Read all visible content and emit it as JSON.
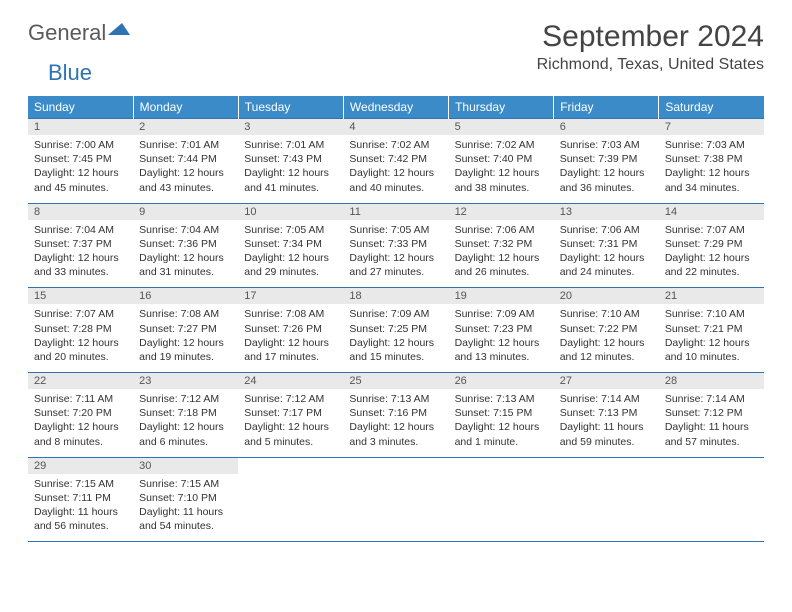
{
  "brand": {
    "general": "General",
    "blue": "Blue"
  },
  "title": "September 2024",
  "location": "Richmond, Texas, United States",
  "colors": {
    "header_bg": "#3b8bc9",
    "accent": "#2e74b5",
    "daynum_bg": "#e9e9e9"
  },
  "dow": [
    "Sunday",
    "Monday",
    "Tuesday",
    "Wednesday",
    "Thursday",
    "Friday",
    "Saturday"
  ],
  "weeks": [
    [
      {
        "n": "1",
        "sr": "Sunrise: 7:00 AM",
        "ss": "Sunset: 7:45 PM",
        "dl1": "Daylight: 12 hours",
        "dl2": "and 45 minutes."
      },
      {
        "n": "2",
        "sr": "Sunrise: 7:01 AM",
        "ss": "Sunset: 7:44 PM",
        "dl1": "Daylight: 12 hours",
        "dl2": "and 43 minutes."
      },
      {
        "n": "3",
        "sr": "Sunrise: 7:01 AM",
        "ss": "Sunset: 7:43 PM",
        "dl1": "Daylight: 12 hours",
        "dl2": "and 41 minutes."
      },
      {
        "n": "4",
        "sr": "Sunrise: 7:02 AM",
        "ss": "Sunset: 7:42 PM",
        "dl1": "Daylight: 12 hours",
        "dl2": "and 40 minutes."
      },
      {
        "n": "5",
        "sr": "Sunrise: 7:02 AM",
        "ss": "Sunset: 7:40 PM",
        "dl1": "Daylight: 12 hours",
        "dl2": "and 38 minutes."
      },
      {
        "n": "6",
        "sr": "Sunrise: 7:03 AM",
        "ss": "Sunset: 7:39 PM",
        "dl1": "Daylight: 12 hours",
        "dl2": "and 36 minutes."
      },
      {
        "n": "7",
        "sr": "Sunrise: 7:03 AM",
        "ss": "Sunset: 7:38 PM",
        "dl1": "Daylight: 12 hours",
        "dl2": "and 34 minutes."
      }
    ],
    [
      {
        "n": "8",
        "sr": "Sunrise: 7:04 AM",
        "ss": "Sunset: 7:37 PM",
        "dl1": "Daylight: 12 hours",
        "dl2": "and 33 minutes."
      },
      {
        "n": "9",
        "sr": "Sunrise: 7:04 AM",
        "ss": "Sunset: 7:36 PM",
        "dl1": "Daylight: 12 hours",
        "dl2": "and 31 minutes."
      },
      {
        "n": "10",
        "sr": "Sunrise: 7:05 AM",
        "ss": "Sunset: 7:34 PM",
        "dl1": "Daylight: 12 hours",
        "dl2": "and 29 minutes."
      },
      {
        "n": "11",
        "sr": "Sunrise: 7:05 AM",
        "ss": "Sunset: 7:33 PM",
        "dl1": "Daylight: 12 hours",
        "dl2": "and 27 minutes."
      },
      {
        "n": "12",
        "sr": "Sunrise: 7:06 AM",
        "ss": "Sunset: 7:32 PM",
        "dl1": "Daylight: 12 hours",
        "dl2": "and 26 minutes."
      },
      {
        "n": "13",
        "sr": "Sunrise: 7:06 AM",
        "ss": "Sunset: 7:31 PM",
        "dl1": "Daylight: 12 hours",
        "dl2": "and 24 minutes."
      },
      {
        "n": "14",
        "sr": "Sunrise: 7:07 AM",
        "ss": "Sunset: 7:29 PM",
        "dl1": "Daylight: 12 hours",
        "dl2": "and 22 minutes."
      }
    ],
    [
      {
        "n": "15",
        "sr": "Sunrise: 7:07 AM",
        "ss": "Sunset: 7:28 PM",
        "dl1": "Daylight: 12 hours",
        "dl2": "and 20 minutes."
      },
      {
        "n": "16",
        "sr": "Sunrise: 7:08 AM",
        "ss": "Sunset: 7:27 PM",
        "dl1": "Daylight: 12 hours",
        "dl2": "and 19 minutes."
      },
      {
        "n": "17",
        "sr": "Sunrise: 7:08 AM",
        "ss": "Sunset: 7:26 PM",
        "dl1": "Daylight: 12 hours",
        "dl2": "and 17 minutes."
      },
      {
        "n": "18",
        "sr": "Sunrise: 7:09 AM",
        "ss": "Sunset: 7:25 PM",
        "dl1": "Daylight: 12 hours",
        "dl2": "and 15 minutes."
      },
      {
        "n": "19",
        "sr": "Sunrise: 7:09 AM",
        "ss": "Sunset: 7:23 PM",
        "dl1": "Daylight: 12 hours",
        "dl2": "and 13 minutes."
      },
      {
        "n": "20",
        "sr": "Sunrise: 7:10 AM",
        "ss": "Sunset: 7:22 PM",
        "dl1": "Daylight: 12 hours",
        "dl2": "and 12 minutes."
      },
      {
        "n": "21",
        "sr": "Sunrise: 7:10 AM",
        "ss": "Sunset: 7:21 PM",
        "dl1": "Daylight: 12 hours",
        "dl2": "and 10 minutes."
      }
    ],
    [
      {
        "n": "22",
        "sr": "Sunrise: 7:11 AM",
        "ss": "Sunset: 7:20 PM",
        "dl1": "Daylight: 12 hours",
        "dl2": "and 8 minutes."
      },
      {
        "n": "23",
        "sr": "Sunrise: 7:12 AM",
        "ss": "Sunset: 7:18 PM",
        "dl1": "Daylight: 12 hours",
        "dl2": "and 6 minutes."
      },
      {
        "n": "24",
        "sr": "Sunrise: 7:12 AM",
        "ss": "Sunset: 7:17 PM",
        "dl1": "Daylight: 12 hours",
        "dl2": "and 5 minutes."
      },
      {
        "n": "25",
        "sr": "Sunrise: 7:13 AM",
        "ss": "Sunset: 7:16 PM",
        "dl1": "Daylight: 12 hours",
        "dl2": "and 3 minutes."
      },
      {
        "n": "26",
        "sr": "Sunrise: 7:13 AM",
        "ss": "Sunset: 7:15 PM",
        "dl1": "Daylight: 12 hours",
        "dl2": "and 1 minute."
      },
      {
        "n": "27",
        "sr": "Sunrise: 7:14 AM",
        "ss": "Sunset: 7:13 PM",
        "dl1": "Daylight: 11 hours",
        "dl2": "and 59 minutes."
      },
      {
        "n": "28",
        "sr": "Sunrise: 7:14 AM",
        "ss": "Sunset: 7:12 PM",
        "dl1": "Daylight: 11 hours",
        "dl2": "and 57 minutes."
      }
    ],
    [
      {
        "n": "29",
        "sr": "Sunrise: 7:15 AM",
        "ss": "Sunset: 7:11 PM",
        "dl1": "Daylight: 11 hours",
        "dl2": "and 56 minutes."
      },
      {
        "n": "30",
        "sr": "Sunrise: 7:15 AM",
        "ss": "Sunset: 7:10 PM",
        "dl1": "Daylight: 11 hours",
        "dl2": "and 54 minutes."
      },
      null,
      null,
      null,
      null,
      null
    ]
  ]
}
